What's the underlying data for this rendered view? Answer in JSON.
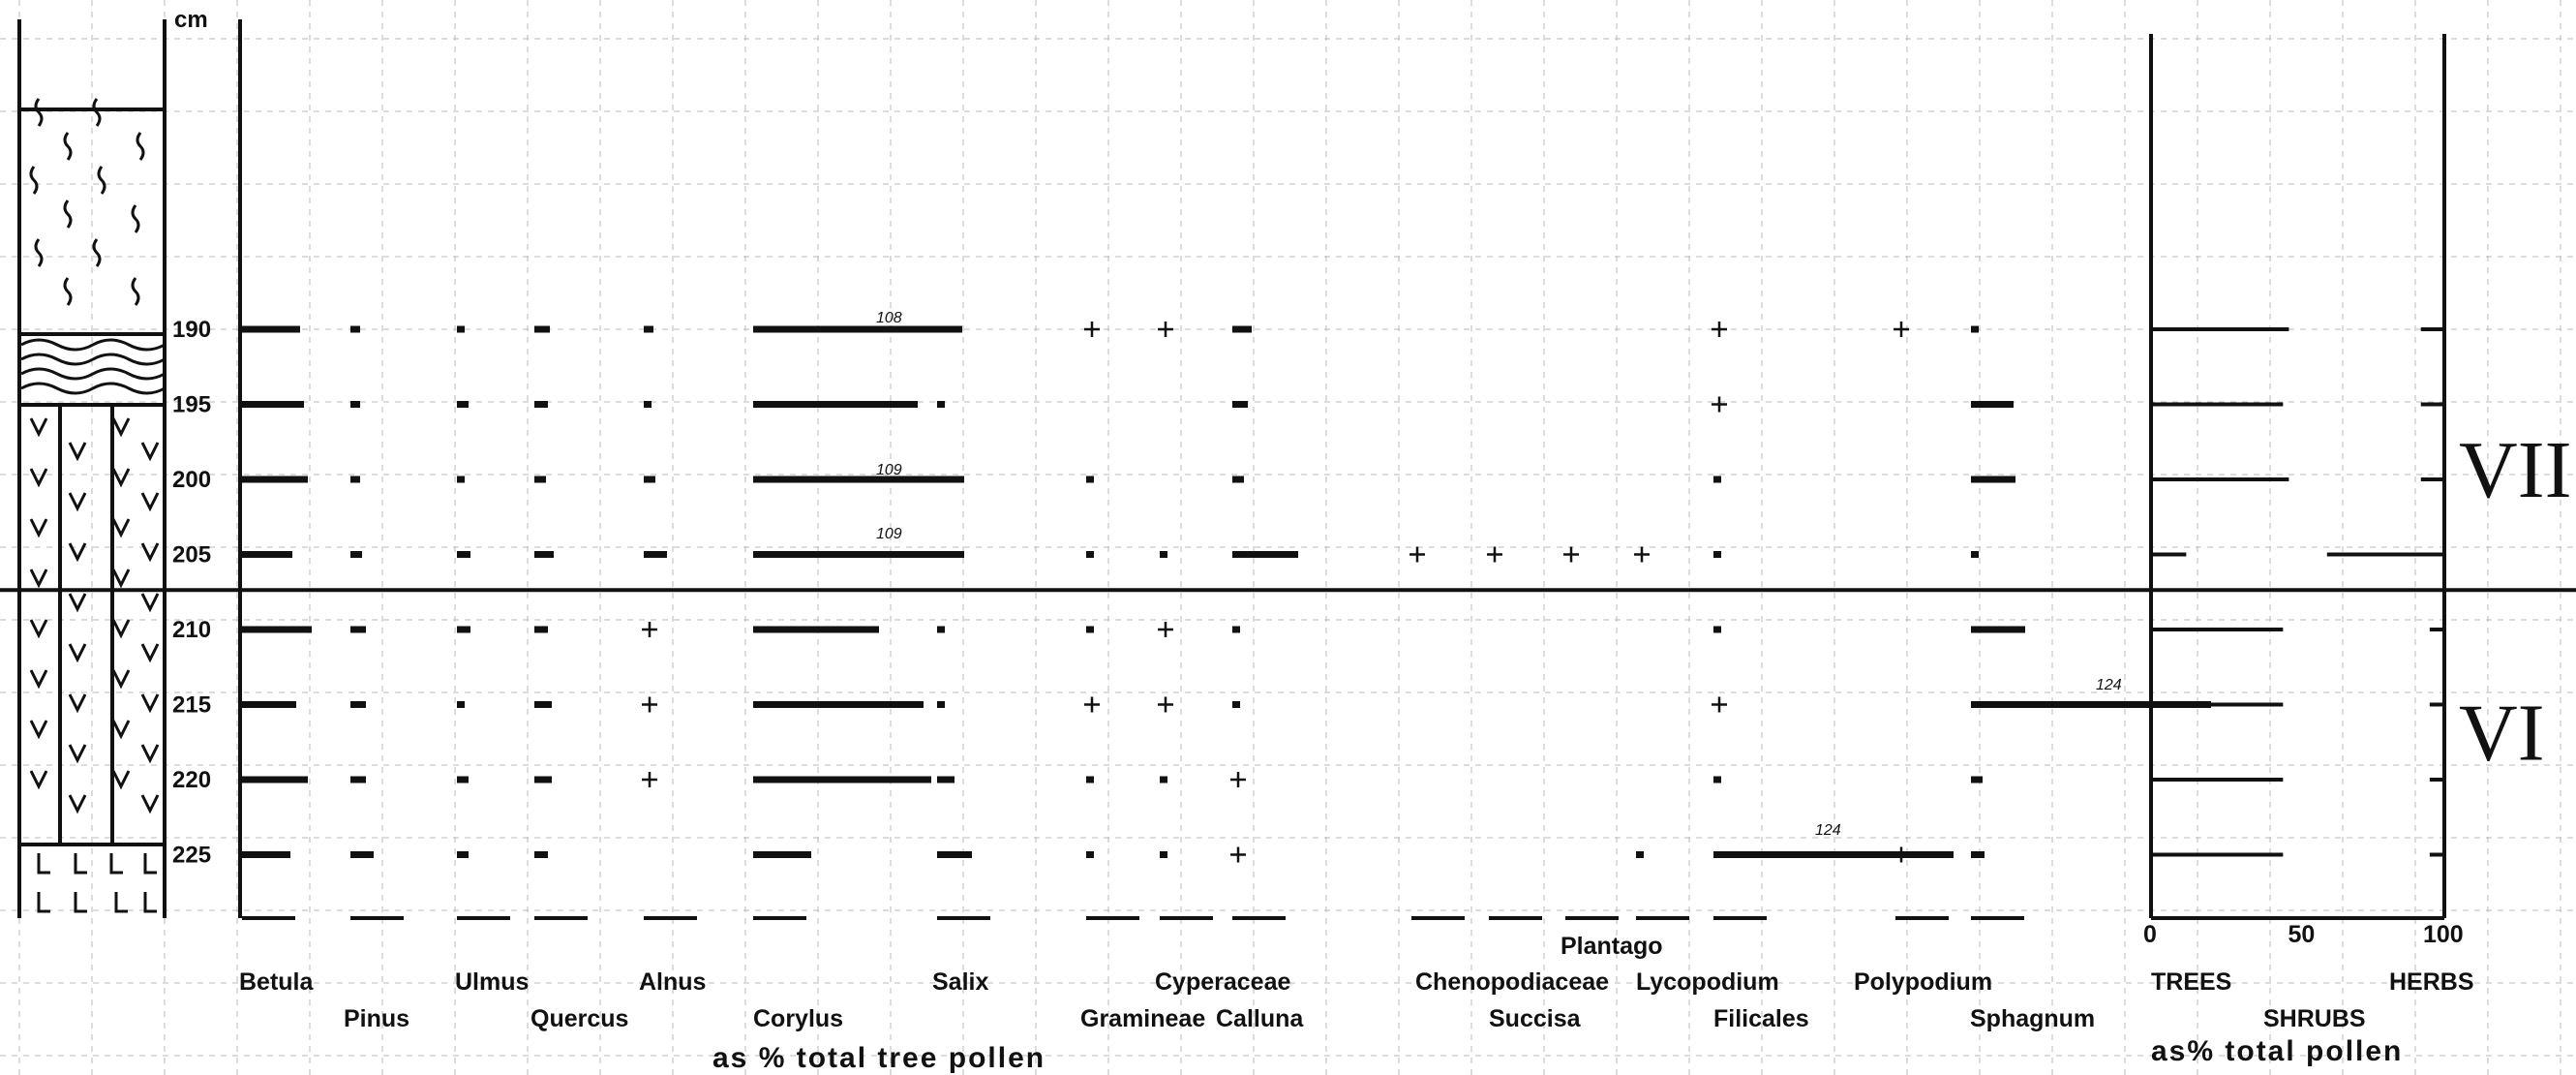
{
  "chart_data": {
    "type": "pollen-diagram",
    "depth_unit": "cm",
    "depths": [
      190,
      195,
      200,
      205,
      210,
      215,
      220,
      225
    ],
    "zone_boundary_depth": 207.5,
    "zones": [
      {
        "label": "VII",
        "from": 187,
        "to": 207.5
      },
      {
        "label": "VI",
        "from": 207.5,
        "to": 229
      }
    ],
    "tree_pollen_note": "as % total tree pollen",
    "total_pollen_note": "as% total pollen",
    "taxa": [
      {
        "name": "Betula",
        "values": [
          30,
          32,
          34,
          26,
          36,
          28,
          34,
          25
        ]
      },
      {
        "name": "Pinus",
        "values": [
          5,
          5,
          5,
          6,
          8,
          8,
          8,
          12
        ]
      },
      {
        "name": "Ulmus",
        "values": [
          2,
          6,
          3,
          7,
          7,
          3,
          6,
          6
        ]
      },
      {
        "name": "Quercus",
        "values": [
          8,
          7,
          6,
          10,
          7,
          9,
          9,
          7
        ]
      },
      {
        "name": "Alnus",
        "values": [
          5,
          4,
          6,
          12,
          "+",
          "+",
          "+",
          null
        ]
      },
      {
        "name": "Corylus",
        "values": [
          108,
          85,
          109,
          109,
          65,
          88,
          92,
          30
        ]
      },
      {
        "name": "Salix",
        "values": [
          5,
          3,
          3,
          4,
          3,
          3,
          9,
          18
        ]
      },
      {
        "name": "Gramineae",
        "values": [
          "+",
          null,
          2,
          3,
          3,
          "+",
          3,
          3
        ]
      },
      {
        "name": "Cyperaceae",
        "values": [
          "+",
          null,
          null,
          2,
          "+",
          "+",
          2,
          3
        ]
      },
      {
        "name": "Calluna",
        "values": [
          10,
          8,
          6,
          34,
          4,
          1,
          "+",
          "+"
        ]
      },
      {
        "name": "Chenopodiaceae",
        "values": [
          null,
          null,
          null,
          "+",
          null,
          null,
          null,
          null
        ]
      },
      {
        "name": "Succisa",
        "values": [
          null,
          null,
          null,
          "+",
          null,
          null,
          null,
          null
        ]
      },
      {
        "name": "Plantago",
        "values": [
          null,
          null,
          null,
          "+",
          null,
          null,
          null,
          null
        ]
      },
      {
        "name": "Lycopodium",
        "values": [
          null,
          null,
          null,
          "+",
          null,
          null,
          null,
          3
        ]
      },
      {
        "name": "Filicales",
        "values": [
          "+",
          "+",
          4,
          4,
          4,
          "+",
          4,
          124
        ]
      },
      {
        "name": "Polypodium",
        "values": [
          "+",
          null,
          null,
          null,
          null,
          null,
          null,
          "+"
        ]
      },
      {
        "name": "Sphagnum",
        "values": [
          2,
          22,
          23,
          1,
          28,
          124,
          6,
          7
        ]
      }
    ],
    "annotations": [
      "108",
      "109",
      "109",
      "124",
      "124"
    ],
    "summary": {
      "axis_ticks": [
        "0",
        "50",
        "100"
      ],
      "labels": [
        "TREES",
        "SHRUBS",
        "HERBS"
      ],
      "trees": [
        47,
        45,
        47,
        12,
        45,
        45,
        45,
        45
      ],
      "herbs": [
        8,
        8,
        8,
        40,
        5,
        5,
        5,
        5
      ]
    },
    "depth_axis_label": "cm"
  }
}
